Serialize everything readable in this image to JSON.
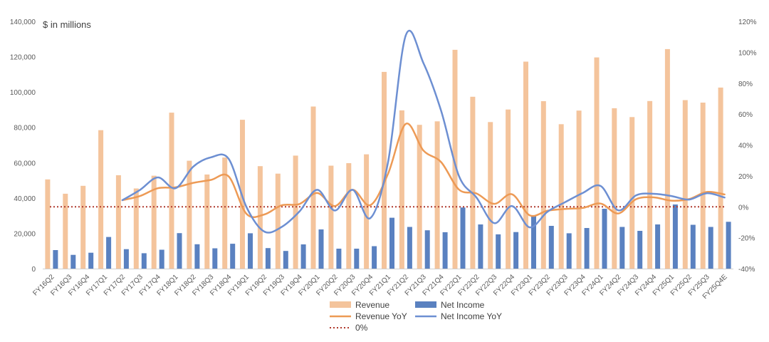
{
  "chart_data": {
    "type": "bar",
    "unit_label": "$ in millions",
    "categories": [
      "FY16Q2",
      "FY16Q3",
      "FY16Q4",
      "FY17Q1",
      "FY17Q2",
      "FY17Q3",
      "FY17Q4",
      "FY18Q1",
      "FY18Q2",
      "FY18Q3",
      "FY18Q4",
      "FY19Q1",
      "FY19Q2",
      "FY19Q3",
      "FY19Q4",
      "FY20Q1",
      "FY20Q2",
      "FY20Q3",
      "FY20Q4",
      "FY21Q1",
      "FY21Q2",
      "FY21Q3",
      "FY21Q4",
      "FY22Q1",
      "FY22Q2",
      "FY22Q3",
      "FY22Q4",
      "FY23Q1",
      "FY23Q2",
      "FY23Q3",
      "FY23Q4",
      "FY24Q1",
      "FY24Q2",
      "FY24Q3",
      "FY24Q4",
      "FY25Q1",
      "FY25Q2",
      "FY25Q3",
      "FY25Q4E"
    ],
    "y_left": {
      "min": 0,
      "max": 140000,
      "ticks": [
        "0",
        "20,000",
        "40,000",
        "60,000",
        "80,000",
        "100,000",
        "120,000",
        "140,000"
      ]
    },
    "y_right": {
      "min": -40,
      "max": 120,
      "ticks": [
        "-40%",
        "-20%",
        "0%",
        "20%",
        "40%",
        "60%",
        "80%",
        "100%",
        "120%"
      ]
    },
    "series": [
      {
        "name": "Revenue",
        "kind": "bar",
        "axis": "left",
        "color": "#F4C49C",
        "values": [
          50500,
          42400,
          46900,
          78400,
          52900,
          45400,
          52600,
          88300,
          61100,
          53300,
          62900,
          84300,
          58000,
          53800,
          64000,
          91800,
          58300,
          59700,
          64700,
          111400,
          89600,
          81400,
          83400,
          123900,
          97300,
          83000,
          90100,
          117200,
          94800,
          81800,
          89500,
          119600,
          90800,
          85800,
          94900,
          124300,
          95400,
          94000,
          102500
        ]
      },
      {
        "name": "Net Income",
        "kind": "bar",
        "axis": "left",
        "color": "#5A81C0",
        "values": [
          10500,
          7800,
          9000,
          17900,
          11000,
          8700,
          10700,
          20100,
          13800,
          11500,
          14100,
          20000,
          11600,
          10000,
          13700,
          22200,
          11300,
          11300,
          12700,
          28800,
          23600,
          21700,
          20600,
          34600,
          25000,
          19400,
          20700,
          30000,
          24200,
          20000,
          23000,
          33900,
          23600,
          21400,
          25000,
          36300,
          24800,
          23600,
          26500
        ]
      },
      {
        "name": "Revenue YoY",
        "kind": "line",
        "axis": "right",
        "color": "#ED9A55",
        "values": [
          null,
          null,
          null,
          null,
          4.3,
          7,
          12,
          12.6,
          15.5,
          17.4,
          19.6,
          -4.5,
          -5,
          1,
          1.8,
          8.9,
          0.5,
          11,
          1.1,
          21.4,
          53.7,
          36.4,
          28.9,
          11.2,
          8.6,
          1.9,
          8.1,
          -5.5,
          -2.5,
          -1.4,
          -0.7,
          2.1,
          -4.3,
          4.9,
          6.1,
          4,
          5,
          9.6,
          8
        ]
      },
      {
        "name": "Net Income YoY",
        "kind": "line",
        "axis": "right",
        "color": "#6D8FD2",
        "values": [
          null,
          null,
          null,
          null,
          4.3,
          11,
          19,
          12,
          26,
          32,
          31,
          0,
          -16,
          -13,
          -3,
          11,
          -2.4,
          11,
          -7.3,
          29,
          111,
          93,
          62,
          20,
          5.9,
          -10.6,
          0.5,
          -13.3,
          -3.2,
          3,
          9,
          13.5,
          -2.3,
          7.4,
          8.4,
          7,
          4.7,
          8.8,
          6
        ]
      },
      {
        "name": "0%",
        "kind": "reference",
        "axis": "right",
        "color": "#B03A2E",
        "value": 0
      }
    ],
    "legend_position": "bottom",
    "grid": false
  }
}
